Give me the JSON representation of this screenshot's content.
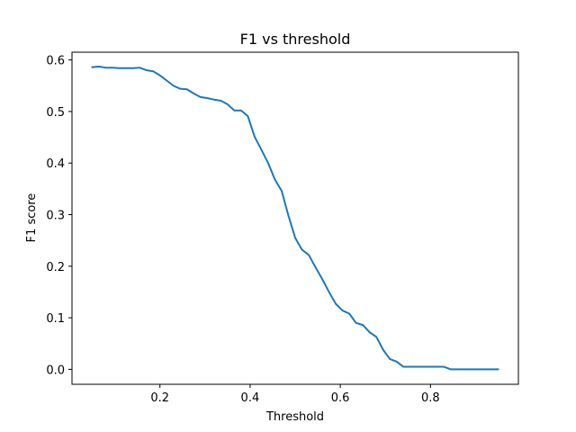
{
  "chart_data": {
    "type": "line",
    "title": "F1 vs threshold",
    "xlabel": "Threshold",
    "ylabel": "F1 score",
    "xlim": [
      0.005,
      0.995
    ],
    "ylim": [
      -0.029,
      0.615
    ],
    "xticks": [
      0.2,
      0.4,
      0.6,
      0.8
    ],
    "xtick_labels": [
      "0.2",
      "0.4",
      "0.6",
      "0.8"
    ],
    "yticks": [
      0.0,
      0.1,
      0.2,
      0.3,
      0.4,
      0.5,
      0.6
    ],
    "ytick_labels": [
      "0.0",
      "0.1",
      "0.2",
      "0.3",
      "0.4",
      "0.5",
      "0.6"
    ],
    "grid": false,
    "line_color": "#1f77b4",
    "series": [
      {
        "name": "",
        "x": [
          0.05,
          0.065,
          0.08,
          0.095,
          0.11,
          0.125,
          0.14,
          0.155,
          0.17,
          0.185,
          0.2,
          0.215,
          0.23,
          0.245,
          0.26,
          0.275,
          0.29,
          0.305,
          0.32,
          0.335,
          0.35,
          0.365,
          0.38,
          0.395,
          0.41,
          0.425,
          0.44,
          0.455,
          0.47,
          0.485,
          0.5,
          0.515,
          0.53,
          0.545,
          0.56,
          0.575,
          0.59,
          0.605,
          0.62,
          0.635,
          0.65,
          0.665,
          0.68,
          0.695,
          0.71,
          0.725,
          0.74,
          0.755,
          0.77,
          0.785,
          0.8,
          0.815,
          0.83,
          0.845,
          0.86,
          0.875,
          0.89,
          0.905,
          0.92,
          0.935,
          0.95
        ],
        "y": [
          0.586,
          0.587,
          0.585,
          0.585,
          0.584,
          0.584,
          0.584,
          0.585,
          0.58,
          0.578,
          0.57,
          0.56,
          0.55,
          0.544,
          0.543,
          0.535,
          0.528,
          0.526,
          0.523,
          0.521,
          0.514,
          0.502,
          0.502,
          0.491,
          0.451,
          0.426,
          0.4,
          0.368,
          0.346,
          0.298,
          0.255,
          0.232,
          0.222,
          0.198,
          0.175,
          0.15,
          0.127,
          0.114,
          0.108,
          0.09,
          0.086,
          0.072,
          0.063,
          0.038,
          0.02,
          0.015,
          0.005,
          0.005,
          0.005,
          0.005,
          0.005,
          0.005,
          0.005,
          0.0,
          0.0,
          0.0,
          0.0,
          0.0,
          0.0,
          0.0,
          0.0
        ]
      }
    ]
  }
}
